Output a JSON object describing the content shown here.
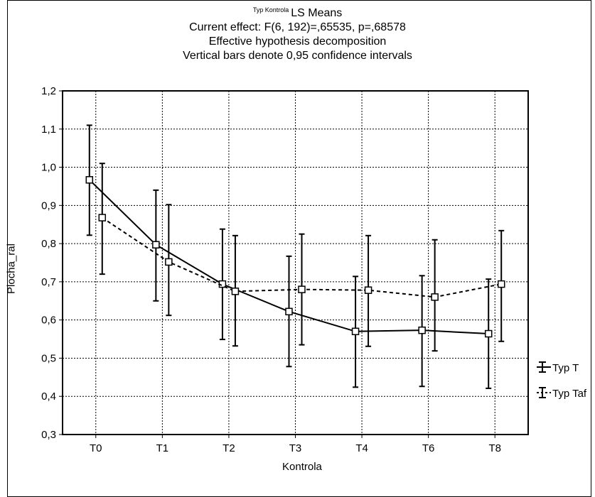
{
  "chart_data": {
    "type": "line",
    "title_small": "Typ Kontrola",
    "title": "LS Means",
    "subtitles": [
      "Current effect: F(6, 192)=,65535, p=,68578",
      "Effective hypothesis decomposition",
      "Vertical bars denote 0,95 confidence intervals"
    ],
    "xlabel": "Kontrola",
    "ylabel": "Plocha_ral",
    "categories": [
      "T0",
      "T1",
      "T2",
      "T3",
      "T4",
      "T6",
      "T8"
    ],
    "ylim": [
      0.3,
      1.2
    ],
    "yticks": [
      "0,3",
      "0,4",
      "0,5",
      "0,6",
      "0,7",
      "0,8",
      "0,9",
      "1,0",
      "1,1",
      "1,2"
    ],
    "grid": true,
    "legend_position": "right",
    "series": [
      {
        "name": "Typ T",
        "line_style": "solid",
        "means": [
          0.967,
          0.797,
          0.694,
          0.622,
          0.57,
          0.573,
          0.564
        ],
        "upper": [
          1.11,
          0.94,
          0.838,
          0.767,
          0.714,
          0.716,
          0.707
        ],
        "lower": [
          0.822,
          0.65,
          0.549,
          0.478,
          0.424,
          0.426,
          0.421
        ]
      },
      {
        "name": "Typ Taf",
        "line_style": "dashed",
        "means": [
          0.868,
          0.752,
          0.675,
          0.68,
          0.678,
          0.66,
          0.694
        ],
        "upper": [
          1.01,
          0.902,
          0.821,
          0.825,
          0.821,
          0.81,
          0.834
        ],
        "lower": [
          0.72,
          0.612,
          0.532,
          0.535,
          0.531,
          0.519,
          0.544
        ]
      }
    ],
    "colors": {
      "line": "#000000",
      "marker_fill": "#ffffff",
      "grid": "#000000"
    }
  }
}
